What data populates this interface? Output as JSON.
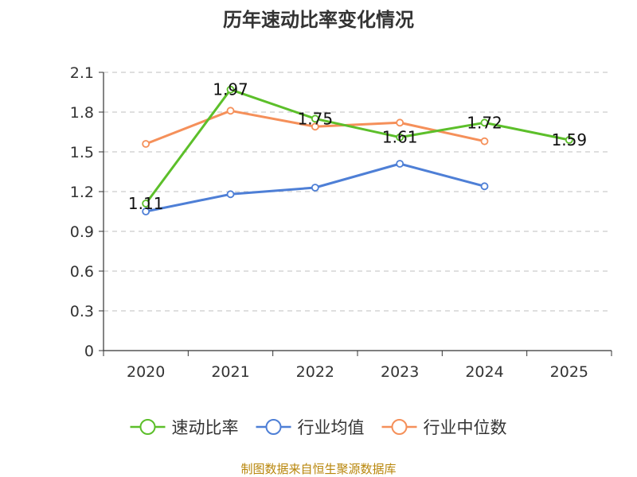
{
  "chart_data": {
    "type": "line",
    "title": "历年速动比率变化情况",
    "categories": [
      "2020",
      "2021",
      "2022",
      "2023",
      "2024",
      "2025"
    ],
    "ylim": [
      0,
      2.1
    ],
    "yticks": [
      "0",
      "0.3",
      "0.6",
      "0.9",
      "1.2",
      "1.5",
      "1.8",
      "2.1"
    ],
    "ytick_values": [
      0,
      0.3,
      0.6,
      0.9,
      1.2,
      1.5,
      1.8,
      2.1
    ],
    "grid": true,
    "legend_position": "bottom",
    "series": [
      {
        "name": "速动比率",
        "color": "#5cbf2a",
        "values": [
          1.11,
          1.97,
          1.75,
          1.61,
          1.72,
          1.59
        ],
        "labels": [
          "1.11",
          "1.97",
          "1.75",
          "1.61",
          "1.72",
          "1.59"
        ]
      },
      {
        "name": "行业均值",
        "color": "#4e7fd6",
        "values": [
          1.05,
          1.18,
          1.23,
          1.41,
          1.24,
          null
        ]
      },
      {
        "name": "行业中位数",
        "color": "#f5905a",
        "values": [
          1.56,
          1.81,
          1.69,
          1.72,
          1.58,
          null
        ]
      }
    ]
  },
  "source": "制图数据来自恒生聚源数据库"
}
